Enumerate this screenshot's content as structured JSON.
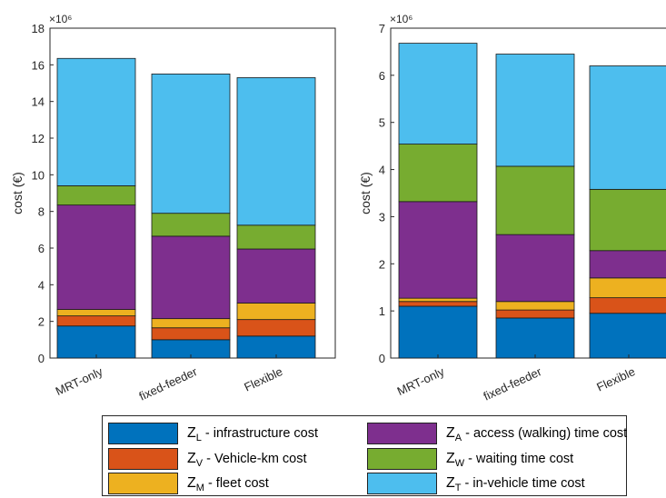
{
  "chart_data": [
    {
      "type": "bar",
      "stacked": true,
      "categories": [
        "MRT-only",
        "fixed-feeder",
        "Flexible"
      ],
      "ylabel": "cost (€)",
      "exponent_label": "×10⁶",
      "ylim": [
        0,
        18
      ],
      "yticks": [
        "0",
        "2",
        "4",
        "6",
        "8",
        "10",
        "12",
        "14",
        "16",
        "18"
      ],
      "series": [
        {
          "key": "L",
          "values": [
            1.75,
            1.0,
            1.2
          ]
        },
        {
          "key": "V",
          "values": [
            0.55,
            0.65,
            0.9
          ]
        },
        {
          "key": "M",
          "values": [
            0.35,
            0.5,
            0.9
          ]
        },
        {
          "key": "A",
          "values": [
            5.7,
            4.5,
            2.95
          ]
        },
        {
          "key": "W",
          "values": [
            1.05,
            1.25,
            1.3
          ]
        },
        {
          "key": "T",
          "values": [
            6.95,
            7.6,
            8.05
          ]
        }
      ]
    },
    {
      "type": "bar",
      "stacked": true,
      "categories": [
        "MRT-only",
        "fixed-feeder",
        "Flexible"
      ],
      "ylabel": "cost (€)",
      "exponent_label": "×10⁶",
      "ylim": [
        0,
        7
      ],
      "yticks": [
        "0",
        "1",
        "2",
        "3",
        "4",
        "5",
        "6",
        "7"
      ],
      "series": [
        {
          "key": "L",
          "values": [
            1.1,
            0.85,
            0.95
          ]
        },
        {
          "key": "V",
          "values": [
            0.1,
            0.17,
            0.33
          ]
        },
        {
          "key": "M",
          "values": [
            0.07,
            0.18,
            0.42
          ]
        },
        {
          "key": "A",
          "values": [
            2.05,
            1.42,
            0.58
          ]
        },
        {
          "key": "W",
          "values": [
            1.22,
            1.45,
            1.3
          ]
        },
        {
          "key": "T",
          "values": [
            2.14,
            2.38,
            2.62
          ]
        }
      ]
    }
  ],
  "colors": {
    "L": "#0072bd",
    "V": "#d95319",
    "M": "#edb120",
    "A": "#7e2f8e",
    "W": "#77ac30",
    "T": "#4dbeee"
  },
  "legend": [
    {
      "key": "L",
      "symbol": "Z",
      "sub": "L",
      "text": "- infrastructure cost"
    },
    {
      "key": "V",
      "symbol": "Z",
      "sub": "V",
      "text": "- Vehicle-km cost"
    },
    {
      "key": "M",
      "symbol": "Z",
      "sub": "M",
      "text": "- fleet cost"
    },
    {
      "key": "A",
      "symbol": "Z",
      "sub": "A",
      "text": "- access (walking) time cost"
    },
    {
      "key": "W",
      "symbol": "Z",
      "sub": "W",
      "text": "- waiting time cost"
    },
    {
      "key": "T",
      "symbol": "Z",
      "sub": "T",
      "text": "- in-vehicle time cost"
    }
  ]
}
